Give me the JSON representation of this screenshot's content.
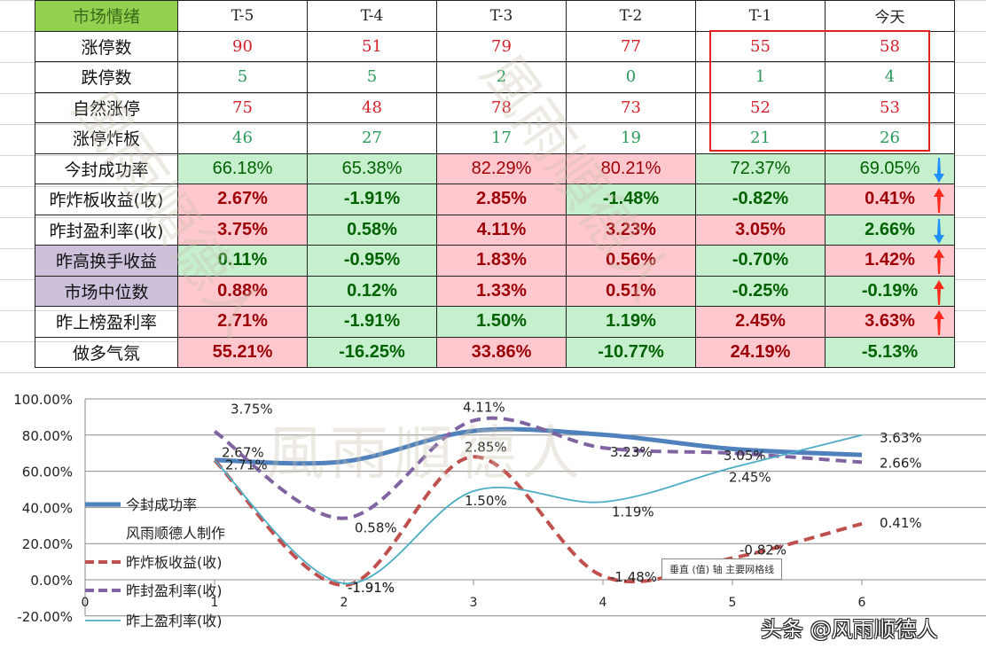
{
  "table": {
    "header": {
      "label": "市场情绪",
      "columns": [
        "T-5",
        "T-4",
        "T-3",
        "T-2",
        "T-1",
        "今天"
      ]
    },
    "count_rows": [
      {
        "label": "涨停数",
        "values": [
          "90",
          "51",
          "79",
          "77",
          "55",
          "58"
        ],
        "color": "red"
      },
      {
        "label": "跌停数",
        "values": [
          "5",
          "5",
          "2",
          "0",
          "1",
          "4"
        ],
        "color": "green"
      },
      {
        "label": "自然涨停",
        "values": [
          "75",
          "48",
          "78",
          "73",
          "52",
          "53"
        ],
        "color": "red"
      },
      {
        "label": "涨停炸板",
        "values": [
          "46",
          "27",
          "17",
          "19",
          "21",
          "26"
        ],
        "color": "green"
      }
    ],
    "pct_rows": [
      {
        "label": "今封成功率",
        "label_bg": "white",
        "bold": false,
        "values": [
          "66.18%",
          "65.38%",
          "82.29%",
          "80.21%",
          "72.37%",
          "69.05%"
        ],
        "tones": [
          "g",
          "g",
          "r",
          "r",
          "g",
          "g"
        ],
        "trend": "down"
      },
      {
        "label": "昨炸板收益(收)",
        "label_bg": "white",
        "bold": true,
        "values": [
          "2.67%",
          "-1.91%",
          "2.85%",
          "-1.48%",
          "-0.82%",
          "0.41%"
        ],
        "tones": [
          "r",
          "g",
          "r",
          "g",
          "g",
          "r"
        ],
        "trend": "up"
      },
      {
        "label": "昨封盈利率(收)",
        "label_bg": "white",
        "bold": true,
        "values": [
          "3.75%",
          "0.58%",
          "4.11%",
          "3.23%",
          "3.05%",
          "2.66%"
        ],
        "tones": [
          "r",
          "g",
          "r",
          "r",
          "r",
          "g"
        ],
        "trend": "down"
      },
      {
        "label": "昨高换手收益",
        "label_bg": "purple",
        "bold": true,
        "values": [
          "0.11%",
          "-0.95%",
          "1.83%",
          "0.56%",
          "-0.70%",
          "1.42%"
        ],
        "tones": [
          "g",
          "g",
          "r",
          "r",
          "g",
          "r"
        ],
        "trend": "up"
      },
      {
        "label": "市场中位数",
        "label_bg": "purple",
        "bold": true,
        "values": [
          "0.88%",
          "0.12%",
          "1.33%",
          "0.51%",
          "-0.25%",
          "-0.19%"
        ],
        "tones": [
          "r",
          "g",
          "r",
          "r",
          "g",
          "g"
        ],
        "trend": "up"
      },
      {
        "label": "昨上榜盈利率",
        "label_bg": "white",
        "bold": true,
        "values": [
          "2.71%",
          "-1.91%",
          "1.50%",
          "1.19%",
          "2.45%",
          "3.63%"
        ],
        "tones": [
          "r",
          "g",
          "g",
          "g",
          "r",
          "r"
        ],
        "trend": "up"
      },
      {
        "label": "做多气氛",
        "label_bg": "white",
        "bold": true,
        "values": [
          "55.21%",
          "-16.25%",
          "33.86%",
          "-10.77%",
          "24.19%",
          "-5.13%"
        ],
        "tones": [
          "r",
          "g",
          "r",
          "g",
          "r",
          "g"
        ],
        "trend": null
      }
    ],
    "trend_icons": {
      "up": "red-up-arrow-icon",
      "down": "blue-down-arrow-icon"
    }
  },
  "colors": {
    "up_red": "#ff2a1a",
    "down_blue": "#1e90ff",
    "cell_red_bg": "#ffc7ce",
    "cell_green_bg": "#c6efce",
    "header_green": "#92d050",
    "label_purple": "#ccc0da",
    "highlight_box": "#e0231f"
  },
  "watermark": "風雨順德人",
  "chart_data": {
    "type": "line",
    "title": "",
    "x": [
      1,
      2,
      3,
      4,
      5,
      6
    ],
    "xlim": [
      0,
      6.8
    ],
    "x_ticks": [
      "0",
      "1",
      "2",
      "3",
      "4",
      "5",
      "6"
    ],
    "ylim": [
      -0.2,
      1.0
    ],
    "y_ticks": [
      "100.00%",
      "80.00%",
      "60.00%",
      "40.00%",
      "20.00%",
      "0.00%",
      "-20.00%"
    ],
    "grid": true,
    "legend_position": "left-inside",
    "legend_note": "风雨顺德人制作",
    "series": [
      {
        "name": "今封成功率",
        "style": "thick-solid",
        "color": "#4f81bd",
        "values": [
          0.6618,
          0.6538,
          0.8229,
          0.8021,
          0.7237,
          0.6905
        ],
        "labels": [
          "",
          "",
          "",
          "",
          "",
          ""
        ]
      },
      {
        "name": "昨炸板收益(收)",
        "style": "dashed",
        "color": "#c0504d",
        "values": [
          0.66,
          -0.03,
          0.68,
          0.02,
          0.12,
          0.31
        ],
        "labels": [
          "2.67%",
          "-1.91%",
          "2.85%",
          "-1.48%",
          "-0.82%",
          "0.41%"
        ]
      },
      {
        "name": "昨封盈利率(收)",
        "style": "dashed",
        "color": "#8064a2",
        "values": [
          0.82,
          0.34,
          0.88,
          0.73,
          0.7,
          0.65
        ],
        "labels": [
          "3.75%",
          "0.58%",
          "4.11%",
          "3.23%",
          "3.05%",
          "2.66%"
        ]
      },
      {
        "name": "昨上盈利率(收)",
        "style": "thin-solid",
        "color": "#4bacc6",
        "values": [
          0.66,
          -0.02,
          0.49,
          0.43,
          0.62,
          0.8
        ],
        "labels": [
          "2.71%",
          "-1.91%",
          "1.50%",
          "1.19%",
          "2.45%",
          "3.63%"
        ]
      }
    ]
  },
  "tooltip": "垂直 (值) 轴 主要网格线",
  "footer_watermark": "头条 @风雨顺德人"
}
